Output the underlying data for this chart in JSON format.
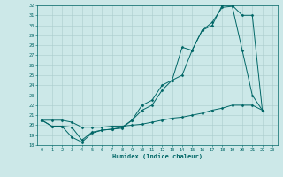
{
  "xlabel": "Humidex (Indice chaleur)",
  "background_color": "#cce8e8",
  "grid_color": "#aacccc",
  "line_color": "#006666",
  "x": [
    0,
    1,
    2,
    3,
    4,
    5,
    6,
    7,
    8,
    9,
    10,
    11,
    12,
    13,
    14,
    15,
    16,
    17,
    18,
    19,
    20,
    21,
    22,
    23
  ],
  "line_upper": [
    20.5,
    19.9,
    19.9,
    18.8,
    18.3,
    19.2,
    19.5,
    19.6,
    19.8,
    20.5,
    22.0,
    22.5,
    24.0,
    24.5,
    27.8,
    27.5,
    29.5,
    30.0,
    32.0,
    32.0,
    31.0,
    31.0,
    21.5,
    null
  ],
  "line_mid": [
    20.5,
    19.9,
    19.9,
    19.8,
    18.5,
    19.3,
    19.5,
    19.6,
    19.7,
    20.5,
    21.5,
    22.0,
    23.5,
    24.5,
    25.0,
    27.5,
    29.5,
    30.3,
    31.8,
    31.9,
    27.5,
    23.0,
    21.5,
    null
  ],
  "line_lower": [
    20.5,
    20.5,
    20.5,
    20.3,
    19.8,
    19.8,
    19.8,
    19.9,
    19.9,
    20.0,
    20.1,
    20.3,
    20.5,
    20.7,
    20.8,
    21.0,
    21.2,
    21.5,
    21.7,
    22.0,
    22.0,
    22.0,
    21.5,
    null
  ],
  "ylim": [
    18,
    32
  ],
  "xlim": [
    -0.5,
    23.5
  ],
  "yticks": [
    18,
    19,
    20,
    21,
    22,
    23,
    24,
    25,
    26,
    27,
    28,
    29,
    30,
    31,
    32
  ],
  "xticks": [
    0,
    1,
    2,
    3,
    4,
    5,
    6,
    7,
    8,
    9,
    10,
    11,
    12,
    13,
    14,
    15,
    16,
    17,
    18,
    19,
    20,
    21,
    22,
    23
  ]
}
